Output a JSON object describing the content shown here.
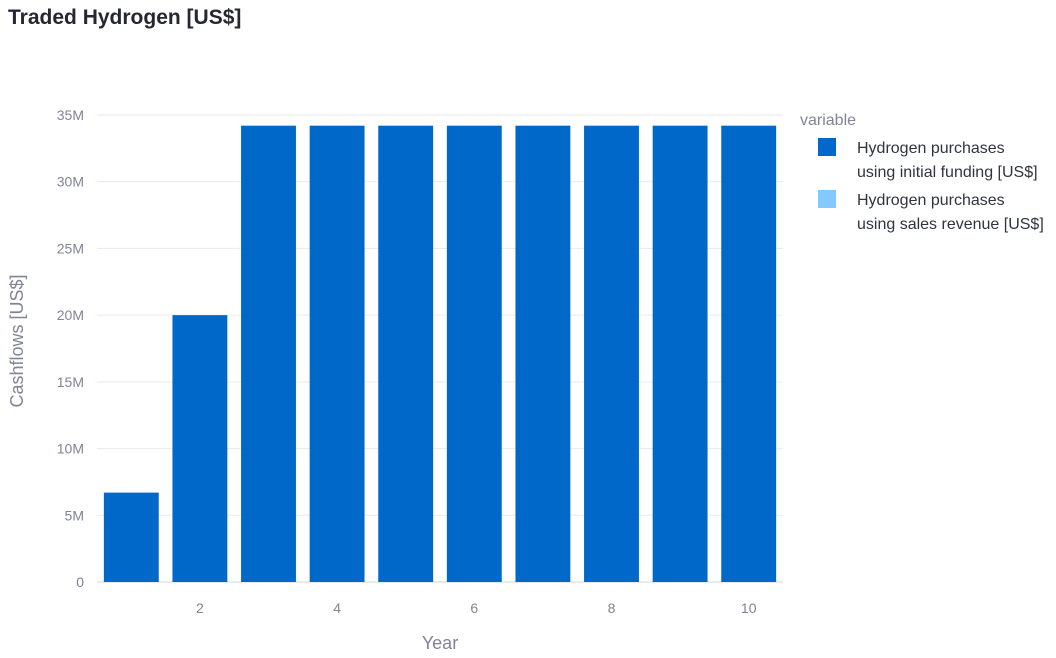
{
  "chart_data": {
    "type": "bar",
    "title": "Traded Hydrogen [US$]",
    "xlabel": "Year",
    "ylabel": "Cashflows [US$]",
    "ylim": [
      0,
      35000000
    ],
    "x": [
      1,
      2,
      3,
      4,
      5,
      6,
      7,
      8,
      9,
      10
    ],
    "x_ticks": [
      2,
      4,
      6,
      8,
      10
    ],
    "x_tick_labels": [
      "2",
      "4",
      "6",
      "8",
      "10"
    ],
    "y_ticks": [
      0,
      5000000,
      10000000,
      15000000,
      20000000,
      25000000,
      30000000,
      35000000
    ],
    "y_tick_labels": [
      "0",
      "5M",
      "10M",
      "15M",
      "20M",
      "25M",
      "30M",
      "35M"
    ],
    "grid": true,
    "barmode": "stack",
    "legend": {
      "title": "variable",
      "placement": "top-right",
      "entries": [
        {
          "line1": "Hydrogen purchases",
          "line2": "using initial funding [US$]",
          "color": "#0068c9"
        },
        {
          "line1": "Hydrogen purchases",
          "line2": "using sales revenue [US$]",
          "color": "#83c9ff"
        }
      ]
    },
    "series": [
      {
        "name": "Hydrogen purchases using initial funding [US$]",
        "color": "#0068c9",
        "values": [
          6700000,
          20000000,
          34200000,
          34200000,
          34200000,
          34200000,
          34200000,
          34200000,
          34200000,
          34200000
        ]
      },
      {
        "name": "Hydrogen purchases using sales revenue [US$]",
        "color": "#83c9ff",
        "values": [
          0,
          0,
          0,
          0,
          0,
          0,
          0,
          0,
          0,
          0
        ]
      }
    ]
  }
}
